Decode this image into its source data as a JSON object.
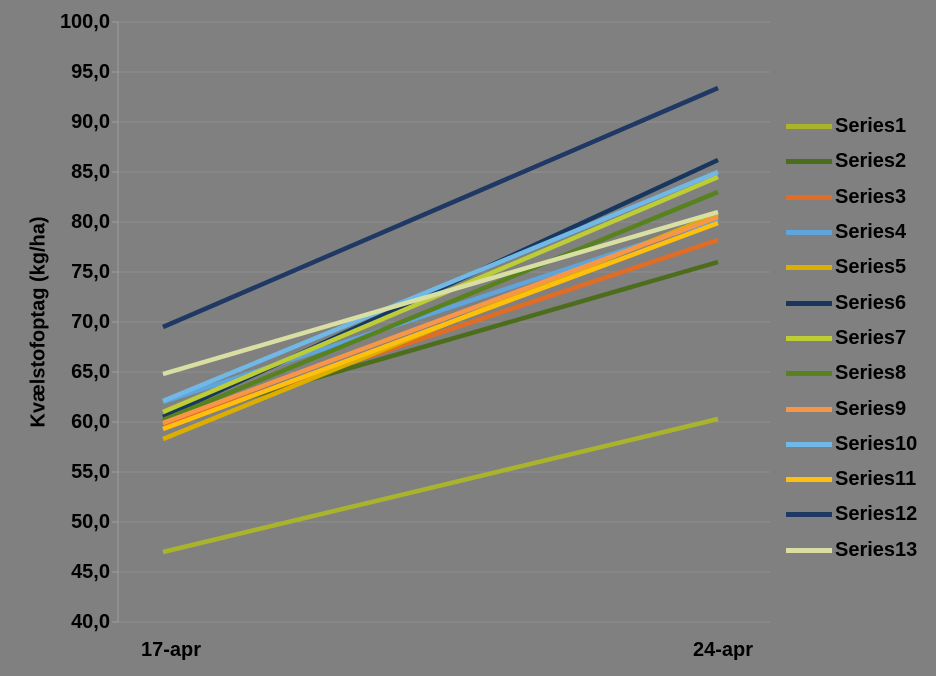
{
  "chart_data": {
    "type": "line",
    "title": "",
    "xlabel": "",
    "ylabel": "Kvælstofoptag (kg/ha)",
    "categories": [
      "17-apr",
      "24-apr"
    ],
    "y_axis": {
      "min": 40,
      "max": 100,
      "step": 5,
      "tick_labels": [
        "100,0",
        "95,0",
        "90,0",
        "85,0",
        "80,0",
        "75,0",
        "70,0",
        "65,0",
        "60,0",
        "55,0",
        "50,0",
        "45,0",
        "40,0"
      ]
    },
    "grid": true,
    "legend_position": "right",
    "background_color": "#808080",
    "gridline_color": "#8E8E8E",
    "axis_color": "#9E9E9E",
    "series": [
      {
        "name": "Series1",
        "color": "#A9B42C",
        "values": [
          47.0,
          60.3
        ]
      },
      {
        "name": "Series2",
        "color": "#4C6D1C",
        "values": [
          60.0,
          76.0
        ]
      },
      {
        "name": "Series3",
        "color": "#E26C23",
        "values": [
          59.7,
          78.2
        ]
      },
      {
        "name": "Series4",
        "color": "#5FA4DA",
        "values": [
          62.0,
          80.3
        ]
      },
      {
        "name": "Series5",
        "color": "#DBAE00",
        "values": [
          58.3,
          80.8
        ]
      },
      {
        "name": "Series6",
        "color": "#17375E",
        "values": [
          60.5,
          86.2
        ]
      },
      {
        "name": "Series7",
        "color": "#BCCD35",
        "values": [
          61.0,
          84.5
        ]
      },
      {
        "name": "Series8",
        "color": "#57821E",
        "values": [
          60.2,
          83.0
        ]
      },
      {
        "name": "Series9",
        "color": "#F79646",
        "values": [
          59.9,
          80.5
        ]
      },
      {
        "name": "Series10",
        "color": "#70B9E6",
        "values": [
          62.1,
          85.0
        ]
      },
      {
        "name": "Series11",
        "color": "#FFC00D",
        "values": [
          59.3,
          79.9
        ]
      },
      {
        "name": "Series12",
        "color": "#1F3864",
        "values": [
          69.5,
          93.4
        ]
      },
      {
        "name": "Series13",
        "color": "#D9DFA3",
        "values": [
          64.8,
          81.0
        ]
      }
    ]
  }
}
